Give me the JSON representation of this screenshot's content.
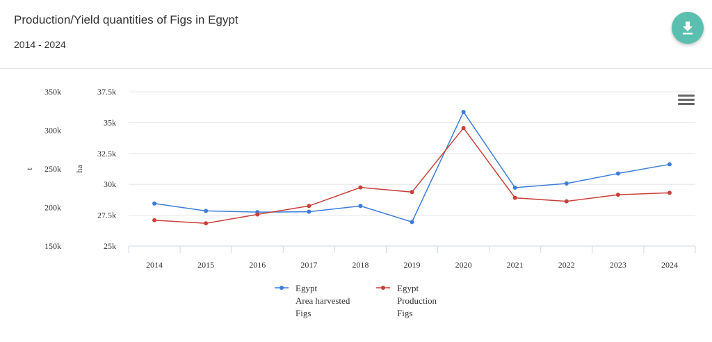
{
  "header": {
    "title": "Production/Yield quantities of Figs in Egypt",
    "subtitle": "2014 - 2024"
  },
  "icons": {
    "download": "download-icon",
    "menu": "hamburger-menu-icon"
  },
  "colors": {
    "area_harvested": "#3b7dd8",
    "production": "#c9403a",
    "download_button": "#5bbfb0"
  },
  "chart_data": {
    "type": "line",
    "categories": [
      "2014",
      "2015",
      "2016",
      "2017",
      "2018",
      "2019",
      "2020",
      "2021",
      "2022",
      "2023",
      "2024"
    ],
    "y_axes": [
      {
        "label": "t",
        "ticks": [
          "150k",
          "200k",
          "250k",
          "300k",
          "350k"
        ],
        "range": [
          150000,
          350000
        ]
      },
      {
        "label": "ha",
        "ticks": [
          "25k",
          "27.5k",
          "30k",
          "32.5k",
          "35k",
          "37.5k"
        ],
        "range": [
          25000,
          37500
        ]
      }
    ],
    "series": [
      {
        "name_lines": [
          "Egypt",
          "Area harvested",
          "Figs"
        ],
        "axis": "ha",
        "color": "#3b7dd8",
        "values": [
          28450,
          27850,
          27750,
          27780,
          28250,
          26950,
          35870,
          29730,
          30070,
          30880,
          31620
        ]
      },
      {
        "name_lines": [
          "Egypt",
          "Production",
          "Figs"
        ],
        "axis": "t",
        "color": "#c9403a",
        "values": [
          183500,
          179500,
          191000,
          202000,
          226000,
          220000,
          303000,
          212500,
          208000,
          216500,
          219000
        ]
      }
    ],
    "grid": true,
    "legend_position": "bottom"
  }
}
